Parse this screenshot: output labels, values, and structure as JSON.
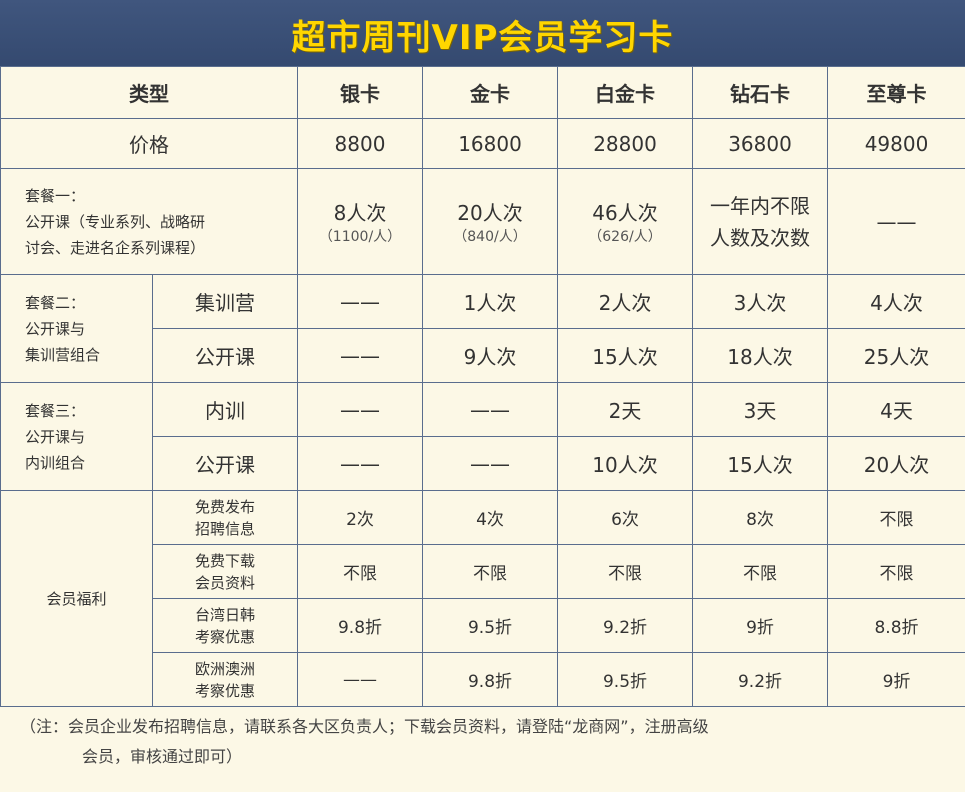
{
  "title": "超市周刊VIP会员学习卡",
  "columns": {
    "type": "类型",
    "silver": "银卡",
    "gold": "金卡",
    "platinum": "白金卡",
    "diamond": "钻石卡",
    "supreme": "至尊卡"
  },
  "price": {
    "label": "价格",
    "values": [
      "8800",
      "16800",
      "28800",
      "36800",
      "49800"
    ]
  },
  "package1": {
    "label_line1": "套餐一：",
    "label_line2": "公开课（专业系列、战略研",
    "label_line3": "讨会、走进名企系列课程）",
    "cells": [
      {
        "main": "8人次",
        "sub": "（1100/人）"
      },
      {
        "main": "20人次",
        "sub": "（840/人）"
      },
      {
        "main": "46人次",
        "sub": "（626/人）"
      },
      {
        "main": "一年内不限",
        "sub": "人数及次数"
      },
      {
        "main": "——",
        "sub": ""
      }
    ]
  },
  "package2": {
    "label_line1": "套餐二：",
    "label_line2": "公开课与",
    "label_line3": "集训营组合",
    "rows": [
      {
        "sub_label": "集训营",
        "values": [
          "——",
          "1人次",
          "2人次",
          "3人次",
          "4人次"
        ]
      },
      {
        "sub_label": "公开课",
        "values": [
          "——",
          "9人次",
          "15人次",
          "18人次",
          "25人次"
        ]
      }
    ]
  },
  "package3": {
    "label_line1": "套餐三：",
    "label_line2": "公开课与",
    "label_line3": "内训组合",
    "rows": [
      {
        "sub_label": "内训",
        "values": [
          "——",
          "——",
          "2天",
          "3天",
          "4天"
        ]
      },
      {
        "sub_label": "公开课",
        "values": [
          "——",
          "——",
          "10人次",
          "15人次",
          "20人次"
        ]
      }
    ]
  },
  "benefits": {
    "label": "会员福利",
    "rows": [
      {
        "line1": "免费发布",
        "line2": "招聘信息",
        "values": [
          "2次",
          "4次",
          "6次",
          "8次",
          "不限"
        ]
      },
      {
        "line1": "免费下载",
        "line2": "会员资料",
        "values": [
          "不限",
          "不限",
          "不限",
          "不限",
          "不限"
        ]
      },
      {
        "line1": "台湾日韩",
        "line2": "考察优惠",
        "values": [
          "9.8折",
          "9.5折",
          "9.2折",
          "9折",
          "8.8折"
        ]
      },
      {
        "line1": "欧洲澳洲",
        "line2": "考察优惠",
        "values": [
          "——",
          "9.8折",
          "9.5折",
          "9.2折",
          "9折"
        ]
      }
    ]
  },
  "note": {
    "line1": "（注：会员企业发布招聘信息，请联系各大区负责人；下载会员资料，请登陆“龙商网”，注册高级",
    "line2": "会员，审核通过即可）"
  }
}
